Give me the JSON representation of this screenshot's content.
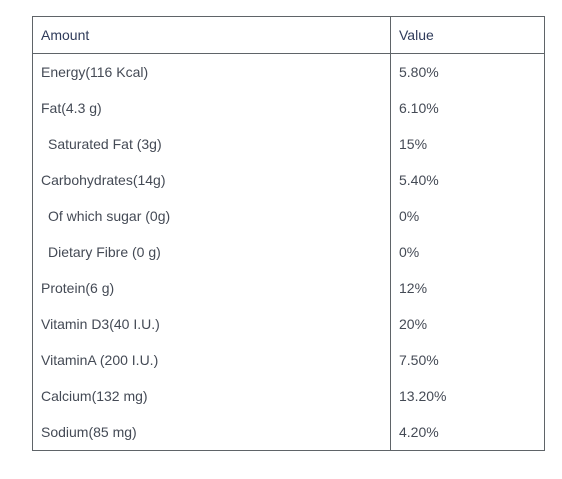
{
  "table": {
    "headers": {
      "amount": "Amount",
      "value": "Value"
    },
    "rows": [
      {
        "amount": "Energy(116 Kcal)",
        "value": "5.80%",
        "indent": false
      },
      {
        "amount": "Fat(4.3 g)",
        "value": "6.10%",
        "indent": false
      },
      {
        "amount": "Saturated Fat (3g)",
        "value": "15%",
        "indent": true
      },
      {
        "amount": "Carbohydrates(14g)",
        "value": "5.40%",
        "indent": false
      },
      {
        "amount": "Of which sugar (0g)",
        "value": "0%",
        "indent": true
      },
      {
        "amount": "Dietary Fibre (0 g)",
        "value": "0%",
        "indent": true
      },
      {
        "amount": "Protein(6 g)",
        "value": "12%",
        "indent": false
      },
      {
        "amount": "Vitamin D3(40 I.U.)",
        "value": "20%",
        "indent": false
      },
      {
        "amount": "VitaminA (200 I.U.)",
        "value": "7.50%",
        "indent": false
      },
      {
        "amount": "Calcium(132 mg)",
        "value": "13.20%",
        "indent": false
      },
      {
        "amount": "Sodium(85 mg)",
        "value": "4.20%",
        "indent": false
      }
    ]
  }
}
